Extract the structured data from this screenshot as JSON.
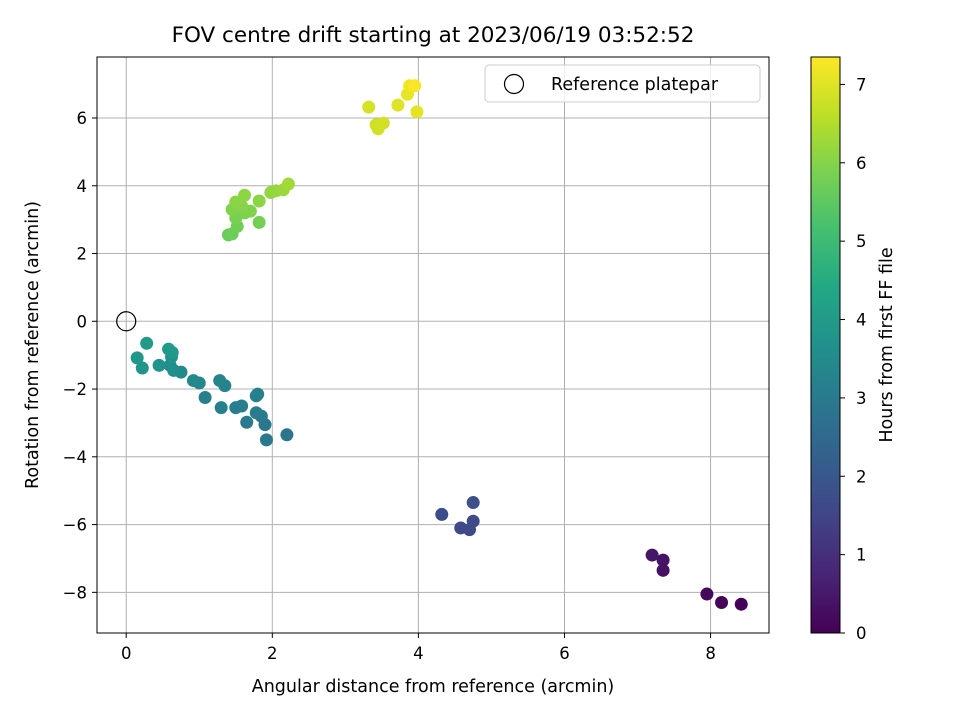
{
  "chart_data": {
    "type": "scatter",
    "title": "FOV centre drift starting at 2023/06/19 03:52:52",
    "xlabel": "Angular distance from reference (arcmin)",
    "ylabel": "Rotation from reference (arcmin)",
    "xlim": [
      -0.4,
      8.8
    ],
    "ylim": [
      -9.2,
      7.8
    ],
    "xticks": [
      0,
      2,
      4,
      6,
      8
    ],
    "yticks": [
      -8,
      -6,
      -4,
      -2,
      0,
      2,
      4,
      6
    ],
    "grid": true,
    "legend": {
      "position": "top-right",
      "entries": [
        {
          "label": "Reference platepar",
          "marker": "open-circle"
        }
      ]
    },
    "reference_point": {
      "x": 0,
      "y": 0
    },
    "colorbar": {
      "label": "Hours from first FF file",
      "range": [
        0,
        7.35
      ],
      "ticks": [
        0,
        1,
        2,
        3,
        4,
        5,
        6,
        7
      ],
      "colormap": "viridis"
    },
    "points": [
      {
        "x": 8.42,
        "y": -8.35,
        "hours": 0.05
      },
      {
        "x": 8.15,
        "y": -8.3,
        "hours": 0.1
      },
      {
        "x": 7.95,
        "y": -8.05,
        "hours": 0.15
      },
      {
        "x": 7.35,
        "y": -7.35,
        "hours": 0.35
      },
      {
        "x": 7.35,
        "y": -7.05,
        "hours": 0.4
      },
      {
        "x": 7.2,
        "y": -6.9,
        "hours": 0.45
      },
      {
        "x": 4.7,
        "y": -6.15,
        "hours": 1.6
      },
      {
        "x": 4.58,
        "y": -6.1,
        "hours": 1.65
      },
      {
        "x": 4.75,
        "y": -5.9,
        "hours": 1.7
      },
      {
        "x": 4.32,
        "y": -5.7,
        "hours": 1.75
      },
      {
        "x": 4.75,
        "y": -5.35,
        "hours": 1.8
      },
      {
        "x": 2.2,
        "y": -3.35,
        "hours": 2.85
      },
      {
        "x": 1.92,
        "y": -3.5,
        "hours": 2.9
      },
      {
        "x": 1.9,
        "y": -3.05,
        "hours": 2.95
      },
      {
        "x": 1.65,
        "y": -2.98,
        "hours": 3.0
      },
      {
        "x": 1.85,
        "y": -2.8,
        "hours": 3.0
      },
      {
        "x": 1.78,
        "y": -2.7,
        "hours": 3.05
      },
      {
        "x": 1.5,
        "y": -2.55,
        "hours": 3.1
      },
      {
        "x": 1.58,
        "y": -2.5,
        "hours": 3.1
      },
      {
        "x": 1.3,
        "y": -2.55,
        "hours": 3.15
      },
      {
        "x": 1.08,
        "y": -2.25,
        "hours": 3.15
      },
      {
        "x": 1.78,
        "y": -2.2,
        "hours": 3.2
      },
      {
        "x": 1.8,
        "y": -2.15,
        "hours": 3.2
      },
      {
        "x": 1.35,
        "y": -1.9,
        "hours": 3.25
      },
      {
        "x": 1.28,
        "y": -1.75,
        "hours": 3.3
      },
      {
        "x": 1.0,
        "y": -1.82,
        "hours": 3.35
      },
      {
        "x": 0.92,
        "y": -1.75,
        "hours": 3.45
      },
      {
        "x": 0.75,
        "y": -1.5,
        "hours": 3.5
      },
      {
        "x": 0.65,
        "y": -1.45,
        "hours": 3.6
      },
      {
        "x": 0.6,
        "y": -1.3,
        "hours": 3.65
      },
      {
        "x": 0.45,
        "y": -1.3,
        "hours": 3.7
      },
      {
        "x": 0.62,
        "y": -1.05,
        "hours": 3.75
      },
      {
        "x": 0.22,
        "y": -1.38,
        "hours": 3.8
      },
      {
        "x": 0.15,
        "y": -1.08,
        "hours": 3.85
      },
      {
        "x": 0.63,
        "y": -0.92,
        "hours": 3.9
      },
      {
        "x": 0.58,
        "y": -0.82,
        "hours": 3.95
      },
      {
        "x": 0.28,
        "y": -0.65,
        "hours": 4.0
      },
      {
        "x": 1.4,
        "y": 2.55,
        "hours": 5.65
      },
      {
        "x": 1.45,
        "y": 2.58,
        "hours": 5.7
      },
      {
        "x": 1.52,
        "y": 2.8,
        "hours": 5.75
      },
      {
        "x": 1.82,
        "y": 2.92,
        "hours": 5.8
      },
      {
        "x": 1.5,
        "y": 3.05,
        "hours": 5.85
      },
      {
        "x": 1.62,
        "y": 3.2,
        "hours": 5.9
      },
      {
        "x": 1.7,
        "y": 3.25,
        "hours": 5.95
      },
      {
        "x": 1.45,
        "y": 3.3,
        "hours": 5.95
      },
      {
        "x": 1.58,
        "y": 3.4,
        "hours": 6.0
      },
      {
        "x": 1.5,
        "y": 3.52,
        "hours": 6.05
      },
      {
        "x": 1.82,
        "y": 3.55,
        "hours": 6.05
      },
      {
        "x": 1.62,
        "y": 3.72,
        "hours": 6.1
      },
      {
        "x": 1.98,
        "y": 3.8,
        "hours": 6.15
      },
      {
        "x": 2.05,
        "y": 3.85,
        "hours": 6.2
      },
      {
        "x": 2.15,
        "y": 3.88,
        "hours": 6.25
      },
      {
        "x": 2.22,
        "y": 4.05,
        "hours": 6.3
      },
      {
        "x": 3.42,
        "y": 5.8,
        "hours": 6.8
      },
      {
        "x": 3.45,
        "y": 5.68,
        "hours": 6.85
      },
      {
        "x": 3.52,
        "y": 5.85,
        "hours": 6.85
      },
      {
        "x": 3.32,
        "y": 6.32,
        "hours": 6.9
      },
      {
        "x": 3.72,
        "y": 6.38,
        "hours": 7.0
      },
      {
        "x": 3.98,
        "y": 6.18,
        "hours": 7.05
      },
      {
        "x": 3.85,
        "y": 6.7,
        "hours": 7.1
      },
      {
        "x": 3.88,
        "y": 6.95,
        "hours": 7.2
      },
      {
        "x": 3.95,
        "y": 6.95,
        "hours": 7.3
      }
    ]
  }
}
